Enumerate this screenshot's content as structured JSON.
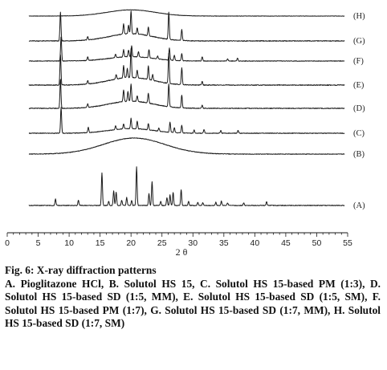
{
  "chart_data": {
    "type": "line",
    "title": "",
    "xlabel": "2 θ",
    "ylabel": "",
    "xlim": [
      0,
      55
    ],
    "x_ticks": [
      0,
      5,
      10,
      15,
      20,
      25,
      30,
      35,
      40,
      45,
      50,
      55
    ],
    "grid": false,
    "legend": "series labels at right end of each trace",
    "series": [
      {
        "name": "(H)",
        "profile": "amorphous",
        "halo": {
          "center": 20.0,
          "width": 5.5,
          "height": 0.55
        },
        "peaks": []
      },
      {
        "name": "(G)",
        "profile": "crystalline",
        "halo": {
          "center": 20.0,
          "width": 5.0,
          "height": 0.25
        },
        "peaks": [
          {
            "x": 8.6,
            "h": 1.0
          },
          {
            "x": 13.0,
            "h": 0.12
          },
          {
            "x": 18.8,
            "h": 0.35
          },
          {
            "x": 19.6,
            "h": 0.3
          },
          {
            "x": 20.0,
            "h": 0.8
          },
          {
            "x": 21.0,
            "h": 0.22
          },
          {
            "x": 22.8,
            "h": 0.3
          },
          {
            "x": 26.1,
            "h": 0.95
          },
          {
            "x": 28.2,
            "h": 0.38
          }
        ]
      },
      {
        "name": "(F)",
        "profile": "crystalline",
        "halo": {
          "center": 20.0,
          "width": 5.0,
          "height": 0.18
        },
        "peaks": [
          {
            "x": 8.7,
            "h": 1.0
          },
          {
            "x": 13.0,
            "h": 0.14
          },
          {
            "x": 17.5,
            "h": 0.15
          },
          {
            "x": 18.8,
            "h": 0.3
          },
          {
            "x": 19.6,
            "h": 0.28
          },
          {
            "x": 20.1,
            "h": 0.45
          },
          {
            "x": 21.2,
            "h": 0.22
          },
          {
            "x": 22.9,
            "h": 0.35
          },
          {
            "x": 24.3,
            "h": 0.12
          },
          {
            "x": 26.2,
            "h": 0.5
          },
          {
            "x": 27.0,
            "h": 0.22
          },
          {
            "x": 28.2,
            "h": 0.3
          },
          {
            "x": 31.5,
            "h": 0.18
          },
          {
            "x": 35.6,
            "h": 0.1
          },
          {
            "x": 37.2,
            "h": 0.12
          }
        ]
      },
      {
        "name": "(E)",
        "profile": "crystalline",
        "halo": {
          "center": 20.0,
          "width": 5.0,
          "height": 0.25
        },
        "peaks": [
          {
            "x": 8.6,
            "h": 1.0
          },
          {
            "x": 13.0,
            "h": 0.12
          },
          {
            "x": 17.6,
            "h": 0.15
          },
          {
            "x": 18.8,
            "h": 0.4
          },
          {
            "x": 19.4,
            "h": 0.3
          },
          {
            "x": 20.0,
            "h": 0.95
          },
          {
            "x": 21.0,
            "h": 0.25
          },
          {
            "x": 22.8,
            "h": 0.45
          },
          {
            "x": 23.5,
            "h": 0.2
          },
          {
            "x": 26.1,
            "h": 1.0
          },
          {
            "x": 28.2,
            "h": 0.55
          },
          {
            "x": 31.5,
            "h": 0.12
          }
        ]
      },
      {
        "name": "(D)",
        "profile": "crystalline",
        "halo": {
          "center": 20.0,
          "width": 5.0,
          "height": 0.25
        },
        "peaks": [
          {
            "x": 8.6,
            "h": 1.0
          },
          {
            "x": 13.0,
            "h": 0.12
          },
          {
            "x": 18.8,
            "h": 0.4
          },
          {
            "x": 19.5,
            "h": 0.35
          },
          {
            "x": 20.0,
            "h": 0.6
          },
          {
            "x": 21.0,
            "h": 0.2
          },
          {
            "x": 22.8,
            "h": 0.35
          },
          {
            "x": 26.1,
            "h": 0.8
          },
          {
            "x": 28.2,
            "h": 0.45
          },
          {
            "x": 31.5,
            "h": 0.1
          }
        ]
      },
      {
        "name": "(C)",
        "profile": "crystalline",
        "halo": {
          "center": 20.0,
          "width": 5.0,
          "height": 0.18
        },
        "peaks": [
          {
            "x": 8.7,
            "h": 1.0
          },
          {
            "x": 13.1,
            "h": 0.2
          },
          {
            "x": 17.5,
            "h": 0.15
          },
          {
            "x": 18.8,
            "h": 0.2
          },
          {
            "x": 20.0,
            "h": 0.4
          },
          {
            "x": 21.0,
            "h": 0.3
          },
          {
            "x": 22.8,
            "h": 0.25
          },
          {
            "x": 24.5,
            "h": 0.12
          },
          {
            "x": 26.3,
            "h": 0.4
          },
          {
            "x": 27.0,
            "h": 0.2
          },
          {
            "x": 28.2,
            "h": 0.3
          },
          {
            "x": 30.2,
            "h": 0.12
          },
          {
            "x": 31.8,
            "h": 0.15
          },
          {
            "x": 34.5,
            "h": 0.1
          },
          {
            "x": 37.3,
            "h": 0.12
          }
        ]
      },
      {
        "name": "(B)",
        "profile": "amorphous",
        "halo": {
          "center": 20.5,
          "width": 7.0,
          "height": 1.0
        },
        "peaks": []
      },
      {
        "name": "(A)",
        "profile": "crystalline",
        "halo": {
          "center": 20.0,
          "width": 6.0,
          "height": 0.0
        },
        "peaks": [
          {
            "x": 7.8,
            "h": 0.12
          },
          {
            "x": 11.5,
            "h": 0.1
          },
          {
            "x": 15.3,
            "h": 0.62
          },
          {
            "x": 16.4,
            "h": 0.08
          },
          {
            "x": 17.2,
            "h": 0.28
          },
          {
            "x": 17.6,
            "h": 0.25
          },
          {
            "x": 18.5,
            "h": 0.1
          },
          {
            "x": 19.3,
            "h": 0.15
          },
          {
            "x": 20.1,
            "h": 0.1
          },
          {
            "x": 20.9,
            "h": 0.73
          },
          {
            "x": 22.9,
            "h": 0.22
          },
          {
            "x": 23.4,
            "h": 0.45
          },
          {
            "x": 24.8,
            "h": 0.08
          },
          {
            "x": 25.8,
            "h": 0.15
          },
          {
            "x": 26.3,
            "h": 0.2
          },
          {
            "x": 26.8,
            "h": 0.25
          },
          {
            "x": 28.1,
            "h": 0.3
          },
          {
            "x": 29.3,
            "h": 0.08
          },
          {
            "x": 30.8,
            "h": 0.06
          },
          {
            "x": 31.6,
            "h": 0.05
          },
          {
            "x": 33.7,
            "h": 0.06
          },
          {
            "x": 34.6,
            "h": 0.08
          },
          {
            "x": 35.6,
            "h": 0.05
          },
          {
            "x": 38.2,
            "h": 0.05
          },
          {
            "x": 41.9,
            "h": 0.07
          }
        ]
      }
    ]
  },
  "caption": {
    "figure_title": "Fig. 6: X-ray diffraction patterns",
    "description": "A. Pioglitazone HCl, B. Solutol HS 15, C. Solutol HS 15-based PM (1:3), D. Solutol HS 15-based SD (1:5, MM), E. Solutol HS 15-based SD (1:5, SM), F. Solutol HS 15-based PM (1:7), G. Solutol HS 15-based SD (1:7, MM), H. Solutol HS 15-based SD (1:7, SM)"
  }
}
